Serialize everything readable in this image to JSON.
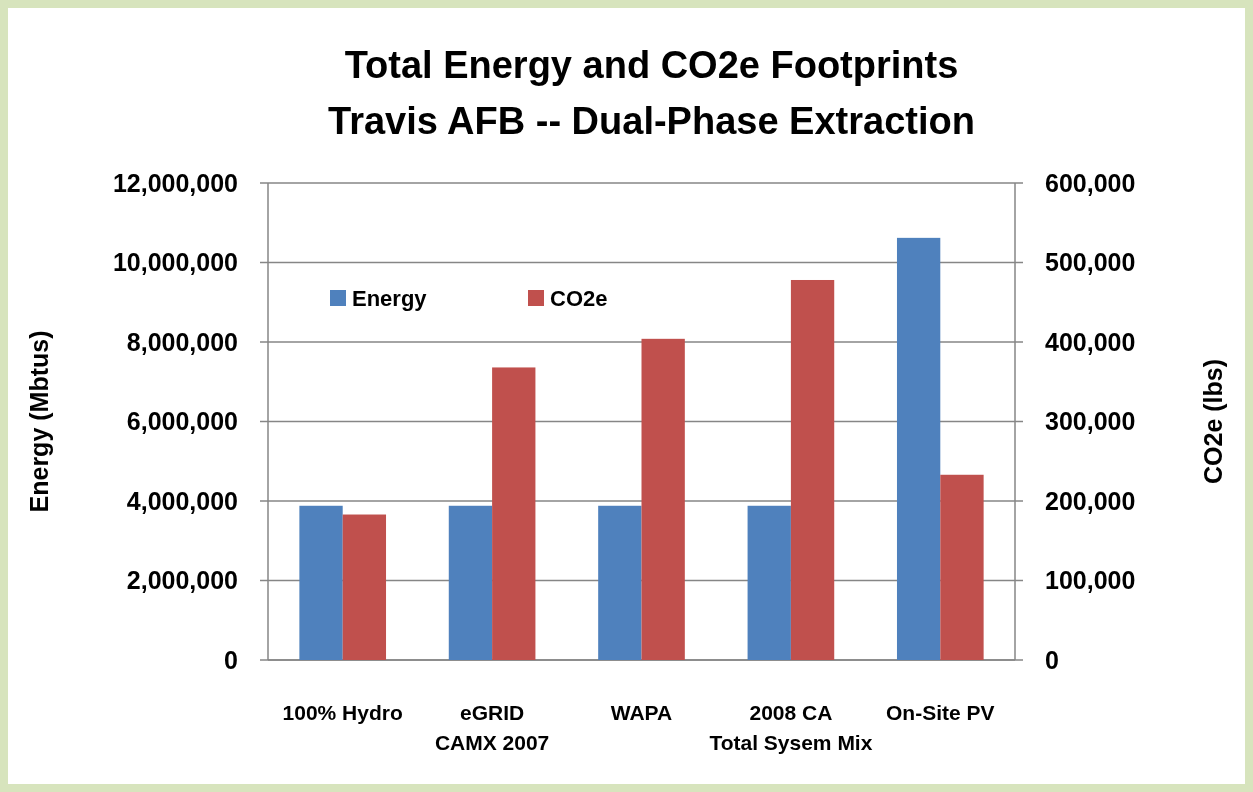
{
  "chart_data": {
    "type": "bar",
    "title": "Total Energy and CO2e Footprints\nTravis AFB -- Dual-Phase Extraction",
    "ylabel": "Energy (Mbtus)",
    "y2label": "CO2e (lbs)",
    "categories": [
      "100% Hydro",
      "eGRID\nCAMX 2007",
      "WAPA",
      "2008 CA\nTotal Sysem Mix",
      "On-Site PV"
    ],
    "series": [
      {
        "name": "Energy",
        "color": "#4f81bd",
        "values": [
          3880000,
          3880000,
          3880000,
          3880000,
          10620000
        ]
      },
      {
        "name": "CO2e",
        "color": "#c0504d",
        "axis": "y2",
        "values": [
          183000,
          368000,
          404000,
          478000,
          233000
        ]
      }
    ],
    "ylim": [
      0,
      12000000
    ],
    "yticks": [
      {
        "value": 0,
        "label": "0"
      },
      {
        "value": 2000000,
        "label": "2,000,000"
      },
      {
        "value": 4000000,
        "label": "4,000,000"
      },
      {
        "value": 6000000,
        "label": "6,000,000"
      },
      {
        "value": 8000000,
        "label": "8,000,000"
      },
      {
        "value": 10000000,
        "label": "10,000,000"
      },
      {
        "value": 12000000,
        "label": "12,000,000"
      }
    ],
    "y2lim": [
      0,
      600000
    ],
    "y2ticks": [
      {
        "value": 0,
        "label": "0"
      },
      {
        "value": 100000,
        "label": "100,000"
      },
      {
        "value": 200000,
        "label": "200,000"
      },
      {
        "value": 300000,
        "label": "300,000"
      },
      {
        "value": 400000,
        "label": "400,000"
      },
      {
        "value": 500000,
        "label": "500,000"
      },
      {
        "value": 600000,
        "label": "600,000"
      }
    ],
    "grid": "y",
    "legend": "top left"
  }
}
